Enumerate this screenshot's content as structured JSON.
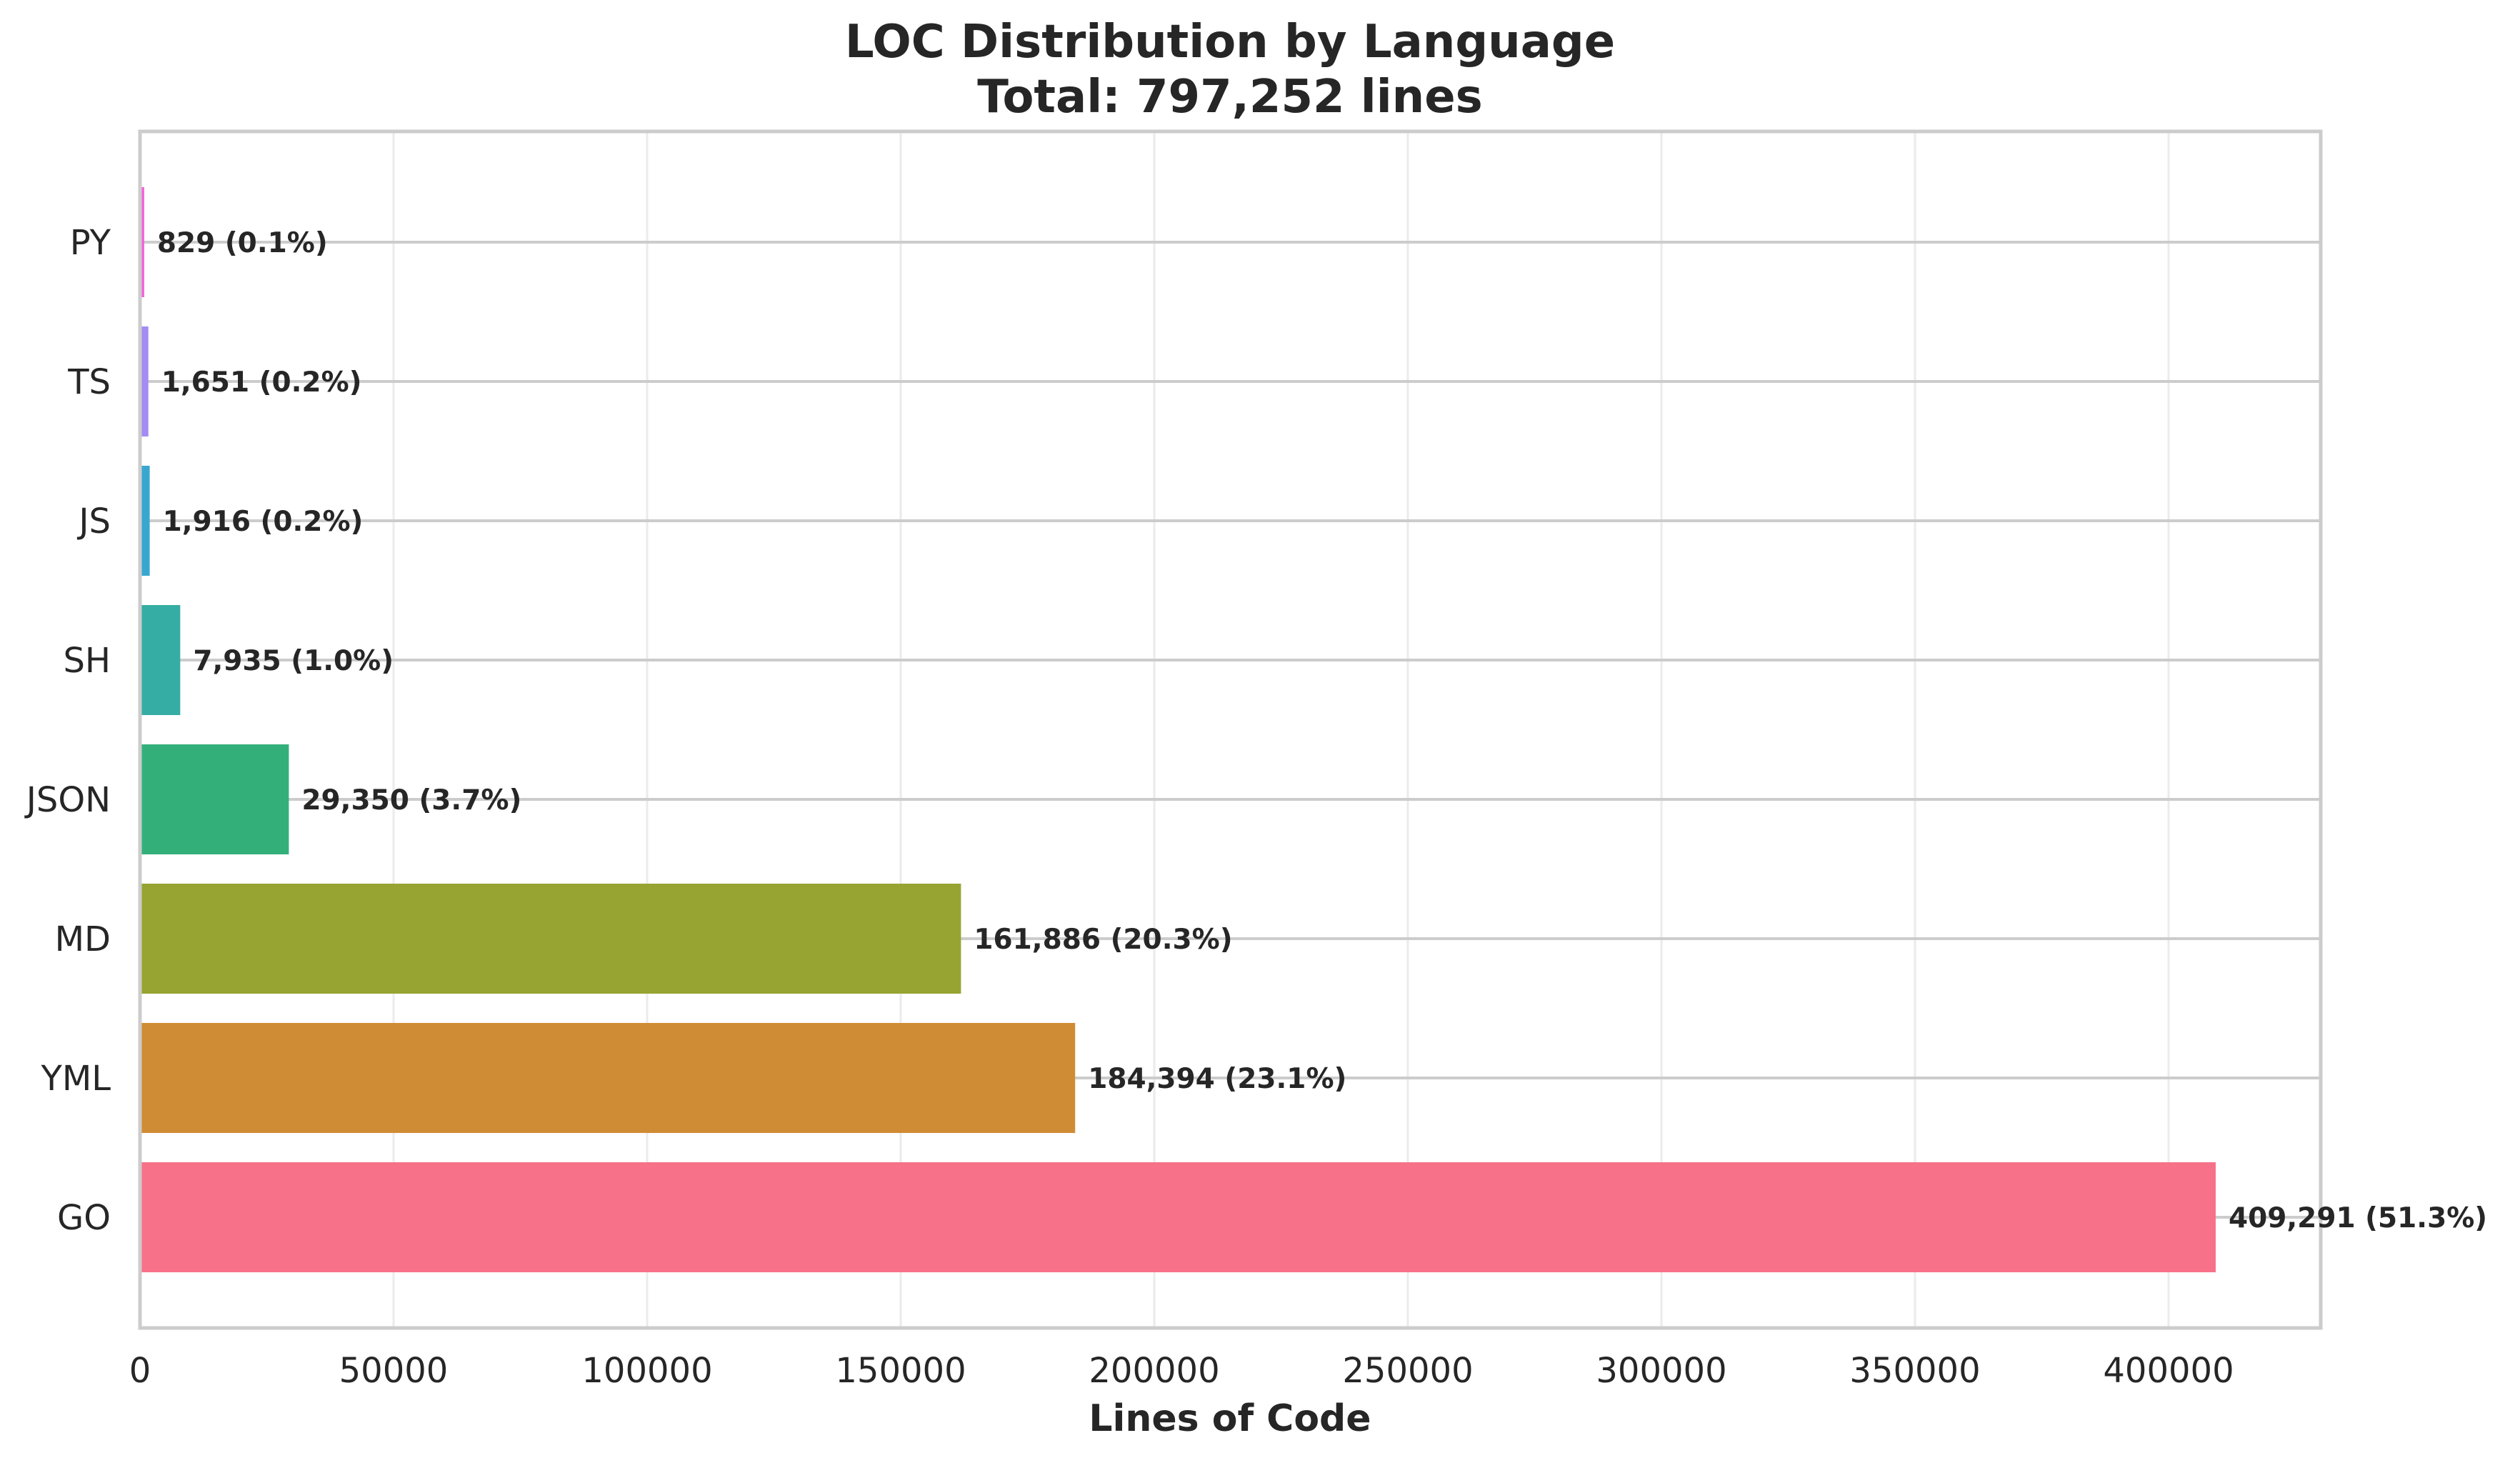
{
  "chart_data": {
    "type": "bar",
    "orientation": "horizontal",
    "title": "LOC Distribution by Language",
    "subtitle": "Total: 797,252 lines",
    "xlabel": "Lines of Code",
    "ylabel": "",
    "xlim": [
      0,
      430000
    ],
    "xticks": [
      0,
      50000,
      100000,
      150000,
      200000,
      250000,
      300000,
      350000,
      400000
    ],
    "grid": true,
    "categories": [
      "GO",
      "YML",
      "MD",
      "JSON",
      "SH",
      "JS",
      "TS",
      "PY"
    ],
    "values": [
      409291,
      184394,
      161886,
      29350,
      7935,
      1916,
      1651,
      829
    ],
    "data_labels": [
      "409,291 (51.3%)",
      "184,394 (23.1%)",
      "161,886 (20.3%)",
      "29,350 (3.7%)",
      "7,935 (1.0%)",
      "1,916 (0.2%)",
      "1,651 (0.2%)",
      "829 (0.1%)"
    ],
    "colors": [
      "#f77189",
      "#d08c34",
      "#97a431",
      "#33b07a",
      "#36ada4",
      "#38a7d0",
      "#a48cf4",
      "#f561dd"
    ]
  }
}
